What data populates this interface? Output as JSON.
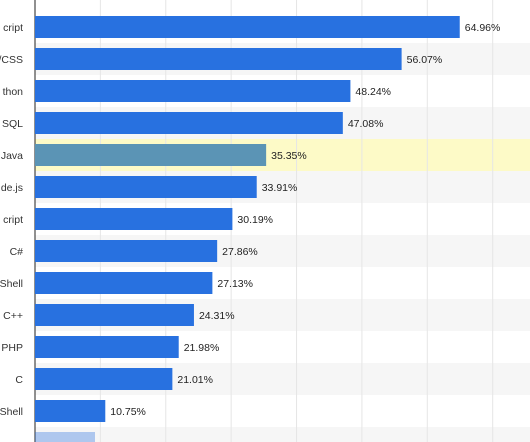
{
  "chart_data": {
    "type": "bar",
    "orientation": "horizontal",
    "categories": [
      "cript",
      "/CSS",
      "thon",
      "SQL",
      "Java",
      "de.js",
      "cript",
      "C#",
      "Shell",
      "C++",
      "PHP",
      "C",
      "Shell"
    ],
    "values": [
      64.96,
      56.07,
      48.24,
      47.08,
      35.35,
      33.91,
      30.19,
      27.86,
      27.13,
      24.31,
      21.98,
      21.01,
      10.75
    ],
    "value_labels": [
      "64.96%",
      "56.07%",
      "48.24%",
      "47.08%",
      "35.35%",
      "33.91%",
      "30.19%",
      "27.86%",
      "27.13%",
      "24.31%",
      "21.98%",
      "21.01%",
      "10.75%"
    ],
    "highlighted_category_index": 4,
    "xlim": [
      0,
      75
    ],
    "grid": true,
    "title": "",
    "xlabel": "",
    "ylabel": "",
    "colors": {
      "bar": "#2871e0",
      "bar_highlight": "#5b94b5",
      "highlight_row": "#fdfac7",
      "alt_row": "#f6f6f6",
      "grid": "#e6e6e6",
      "axis": "#222222"
    }
  }
}
